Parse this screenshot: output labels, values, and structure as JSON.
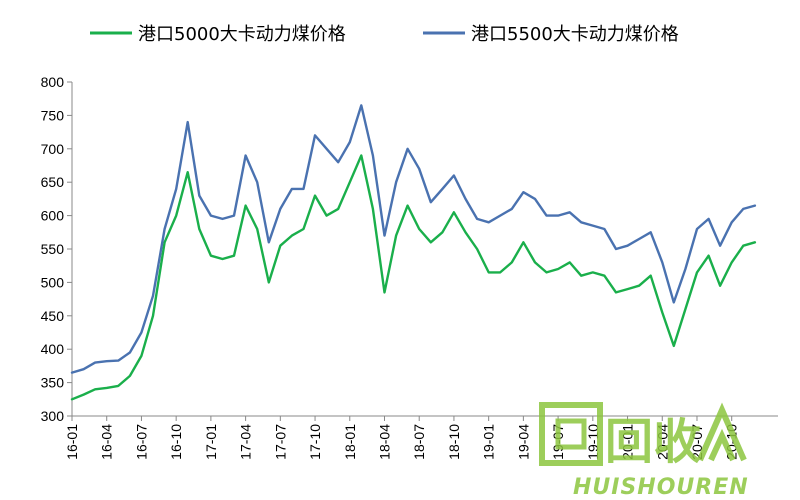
{
  "chart_data": {
    "type": "line",
    "title": "",
    "xlabel": "",
    "ylabel": "",
    "ylim": [
      300,
      800
    ],
    "yticks": [
      300,
      350,
      400,
      450,
      500,
      550,
      600,
      650,
      700,
      750,
      800
    ],
    "xticks": [
      "16-01",
      "16-04",
      "16-07",
      "16-10",
      "17-01",
      "17-04",
      "17-07",
      "17-10",
      "18-01",
      "18-04",
      "18-07",
      "18-10",
      "19-01",
      "19-04",
      "19-07",
      "19-10",
      "20-01",
      "20-04",
      "20-07",
      "20-10"
    ],
    "xlim": [
      "2016-01",
      "2021-02"
    ],
    "grid": false,
    "legend_position": "top",
    "series": [
      {
        "name": "港口5000大卡动力煤价格",
        "color": "#1aaf4b",
        "points": [
          [
            "2016-01",
            325
          ],
          [
            "2016-02",
            332
          ],
          [
            "2016-03",
            340
          ],
          [
            "2016-04",
            342
          ],
          [
            "2016-05",
            345
          ],
          [
            "2016-06",
            360
          ],
          [
            "2016-07",
            390
          ],
          [
            "2016-08",
            450
          ],
          [
            "2016-09",
            560
          ],
          [
            "2016-10",
            600
          ],
          [
            "2016-11",
            665
          ],
          [
            "2016-12",
            580
          ],
          [
            "2017-01",
            540
          ],
          [
            "2017-02",
            535
          ],
          [
            "2017-03",
            540
          ],
          [
            "2017-04",
            615
          ],
          [
            "2017-05",
            580
          ],
          [
            "2017-06",
            500
          ],
          [
            "2017-07",
            555
          ],
          [
            "2017-08",
            570
          ],
          [
            "2017-09",
            580
          ],
          [
            "2017-10",
            630
          ],
          [
            "2017-11",
            600
          ],
          [
            "2017-12",
            610
          ],
          [
            "2018-01",
            650
          ],
          [
            "2018-02",
            690
          ],
          [
            "2018-03",
            610
          ],
          [
            "2018-04",
            485
          ],
          [
            "2018-05",
            570
          ],
          [
            "2018-06",
            615
          ],
          [
            "2018-07",
            580
          ],
          [
            "2018-08",
            560
          ],
          [
            "2018-09",
            575
          ],
          [
            "2018-10",
            605
          ],
          [
            "2018-11",
            575
          ],
          [
            "2018-12",
            550
          ],
          [
            "2019-01",
            515
          ],
          [
            "2019-02",
            515
          ],
          [
            "2019-03",
            530
          ],
          [
            "2019-04",
            560
          ],
          [
            "2019-05",
            530
          ],
          [
            "2019-06",
            515
          ],
          [
            "2019-07",
            520
          ],
          [
            "2019-08",
            530
          ],
          [
            "2019-09",
            510
          ],
          [
            "2019-10",
            515
          ],
          [
            "2019-11",
            510
          ],
          [
            "2019-12",
            485
          ],
          [
            "2020-01",
            490
          ],
          [
            "2020-02",
            495
          ],
          [
            "2020-03",
            510
          ],
          [
            "2020-04",
            455
          ],
          [
            "2020-05",
            405
          ],
          [
            "2020-06",
            460
          ],
          [
            "2020-07",
            515
          ],
          [
            "2020-08",
            540
          ],
          [
            "2020-09",
            495
          ],
          [
            "2020-10",
            530
          ],
          [
            "2020-11",
            555
          ],
          [
            "2020-12",
            560
          ]
        ]
      },
      {
        "name": "港口5500大卡动力煤价格",
        "color": "#4a72b0",
        "points": [
          [
            "2016-01",
            365
          ],
          [
            "2016-02",
            370
          ],
          [
            "2016-03",
            380
          ],
          [
            "2016-04",
            382
          ],
          [
            "2016-05",
            383
          ],
          [
            "2016-06",
            395
          ],
          [
            "2016-07",
            425
          ],
          [
            "2016-08",
            480
          ],
          [
            "2016-09",
            580
          ],
          [
            "2016-10",
            640
          ],
          [
            "2016-11",
            740
          ],
          [
            "2016-12",
            630
          ],
          [
            "2017-01",
            600
          ],
          [
            "2017-02",
            595
          ],
          [
            "2017-03",
            600
          ],
          [
            "2017-04",
            690
          ],
          [
            "2017-05",
            650
          ],
          [
            "2017-06",
            560
          ],
          [
            "2017-07",
            610
          ],
          [
            "2017-08",
            640
          ],
          [
            "2017-09",
            640
          ],
          [
            "2017-10",
            720
          ],
          [
            "2017-11",
            700
          ],
          [
            "2017-12",
            680
          ],
          [
            "2018-01",
            710
          ],
          [
            "2018-02",
            765
          ],
          [
            "2018-03",
            690
          ],
          [
            "2018-04",
            570
          ],
          [
            "2018-05",
            650
          ],
          [
            "2018-06",
            700
          ],
          [
            "2018-07",
            670
          ],
          [
            "2018-08",
            620
          ],
          [
            "2018-09",
            640
          ],
          [
            "2018-10",
            660
          ],
          [
            "2018-11",
            625
          ],
          [
            "2018-12",
            595
          ],
          [
            "2019-01",
            590
          ],
          [
            "2019-02",
            600
          ],
          [
            "2019-03",
            610
          ],
          [
            "2019-04",
            635
          ],
          [
            "2019-05",
            625
          ],
          [
            "2019-06",
            600
          ],
          [
            "2019-07",
            600
          ],
          [
            "2019-08",
            605
          ],
          [
            "2019-09",
            590
          ],
          [
            "2019-10",
            585
          ],
          [
            "2019-11",
            580
          ],
          [
            "2019-12",
            550
          ],
          [
            "2020-01",
            555
          ],
          [
            "2020-02",
            565
          ],
          [
            "2020-03",
            575
          ],
          [
            "2020-04",
            530
          ],
          [
            "2020-05",
            470
          ],
          [
            "2020-06",
            520
          ],
          [
            "2020-07",
            580
          ],
          [
            "2020-08",
            595
          ],
          [
            "2020-09",
            555
          ],
          [
            "2020-10",
            590
          ],
          [
            "2020-11",
            610
          ],
          [
            "2020-12",
            615
          ]
        ]
      }
    ]
  },
  "watermark": {
    "chinese": "回收",
    "latin": "HUISHOUREN",
    "color": "#8dc63f",
    "icon": "recycle-chevron-icon"
  }
}
